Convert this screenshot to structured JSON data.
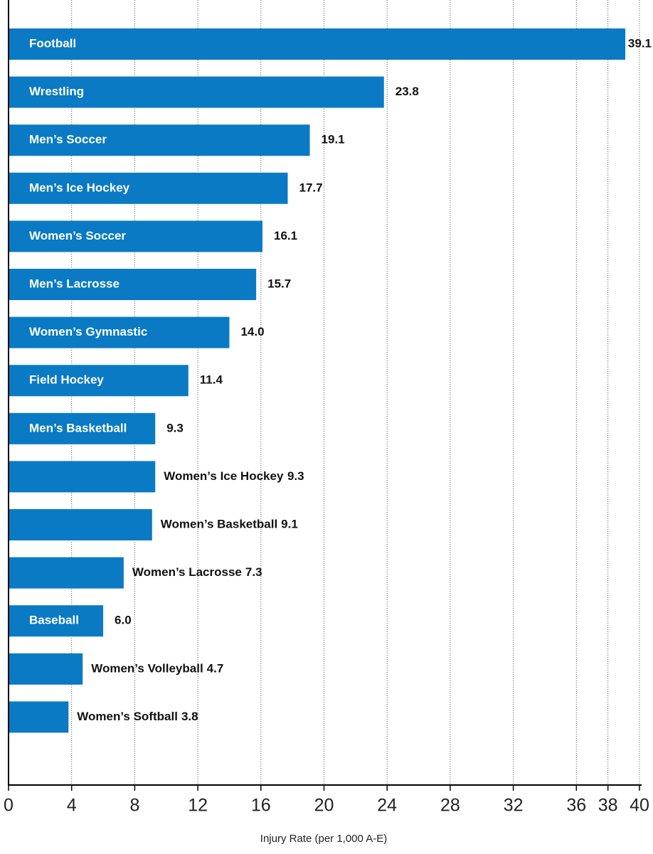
{
  "chart_data": {
    "type": "barh",
    "categories": [
      "Football",
      "Wrestling",
      "Men’s Soccer",
      "Men’s Ice Hockey",
      "Women’s Soccer",
      "Men’s Lacrosse",
      "Women’s Gymnastic",
      "Field Hockey",
      "Men’s Basketball",
      "Women’s Ice Hockey",
      "Women’s Basketball",
      "Women’s Lacrosse",
      "Baseball",
      "Women’s Volleyball",
      "Women’s Softball"
    ],
    "values": [
      39.1,
      23.8,
      19.1,
      17.7,
      16.1,
      15.7,
      14.0,
      11.4,
      9.3,
      9.3,
      9.1,
      7.3,
      6.0,
      4.7,
      3.8
    ],
    "value_labels": [
      "39.1",
      "23.8",
      "19.1",
      "17.7",
      "16.1",
      "15.7",
      "14.0",
      "11.4",
      "9.3",
      "9.3",
      "9.1",
      "7.3",
      "6.0",
      "4.7",
      "3.8"
    ],
    "color": "#0a7ac4",
    "xlabel": "Injury Rate (per 1,000 A-E)",
    "xlim": [
      0,
      40
    ],
    "xticks": [
      0,
      4,
      8,
      12,
      16,
      20,
      24,
      28,
      32,
      36,
      38,
      40
    ],
    "grid": true
  }
}
